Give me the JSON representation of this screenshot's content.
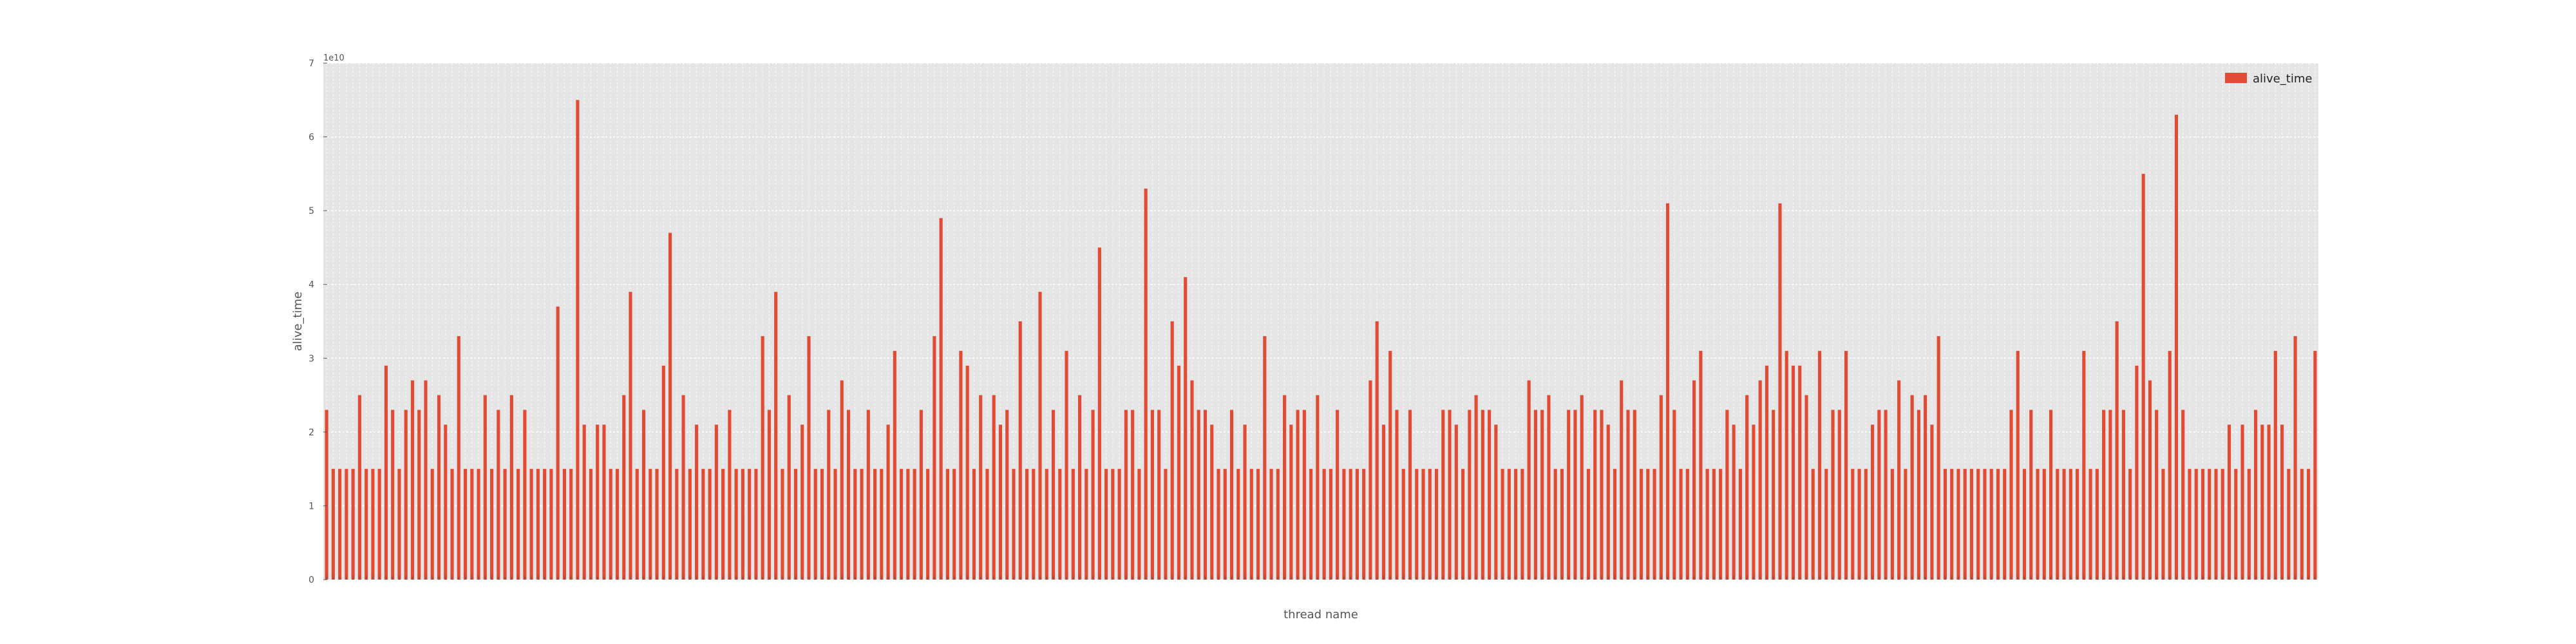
{
  "chart_data": {
    "type": "bar",
    "xlabel": "thread name",
    "ylabel": "alive_time",
    "y_offset_text": "1e10",
    "ylim": [
      0,
      7
    ],
    "yticks": [
      0,
      1,
      2,
      3,
      4,
      5,
      6,
      7
    ],
    "grid": true,
    "legend_position": "top-right",
    "series": [
      {
        "name": "alive_time",
        "color": "#E24A33",
        "values": [
          2.3,
          1.5,
          1.5,
          1.5,
          1.5,
          2.5,
          1.5,
          1.5,
          1.5,
          2.9,
          2.3,
          1.5,
          2.3,
          2.7,
          2.3,
          2.7,
          1.5,
          2.5,
          2.1,
          1.5,
          3.3,
          1.5,
          1.5,
          1.5,
          2.5,
          1.5,
          2.3,
          1.5,
          2.5,
          1.5,
          2.3,
          1.5,
          1.5,
          1.5,
          1.5,
          3.7,
          1.5,
          1.5,
          6.5,
          2.1,
          1.5,
          2.1,
          2.1,
          1.5,
          1.5,
          2.5,
          3.9,
          1.5,
          2.3,
          1.5,
          1.5,
          2.9,
          4.7,
          1.5,
          2.5,
          1.5,
          2.1,
          1.5,
          1.5,
          2.1,
          1.5,
          2.3,
          1.5,
          1.5,
          1.5,
          1.5,
          3.3,
          2.3,
          3.9,
          1.5,
          2.5,
          1.5,
          2.1,
          3.3,
          1.5,
          1.5,
          2.3,
          1.5,
          2.7,
          2.3,
          1.5,
          1.5,
          2.3,
          1.5,
          1.5,
          2.1,
          3.1,
          1.5,
          1.5,
          1.5,
          2.3,
          1.5,
          3.3,
          4.9,
          1.5,
          1.5,
          3.1,
          2.9,
          1.5,
          2.5,
          1.5,
          2.5,
          2.1,
          2.3,
          1.5,
          3.5,
          1.5,
          1.5,
          3.9,
          1.5,
          2.3,
          1.5,
          3.1,
          1.5,
          2.5,
          1.5,
          2.3,
          4.5,
          1.5,
          1.5,
          1.5,
          2.3,
          2.3,
          1.5,
          5.3,
          2.3,
          2.3,
          1.5,
          3.5,
          2.9,
          4.1,
          2.7,
          2.3,
          2.3,
          2.1,
          1.5,
          1.5,
          2.3,
          1.5,
          2.1,
          1.5,
          1.5,
          3.3,
          1.5,
          1.5,
          2.5,
          2.1,
          2.3,
          2.3,
          1.5,
          2.5,
          1.5,
          1.5,
          2.3,
          1.5,
          1.5,
          1.5,
          1.5,
          2.7,
          3.5,
          2.1,
          3.1,
          2.3,
          1.5,
          2.3,
          1.5,
          1.5,
          1.5,
          1.5,
          2.3,
          2.3,
          2.1,
          1.5,
          2.3,
          2.5,
          2.3,
          2.3,
          2.1,
          1.5,
          1.5,
          1.5,
          1.5,
          2.7,
          2.3,
          2.3,
          2.5,
          1.5,
          1.5,
          2.3,
          2.3,
          2.5,
          1.5,
          2.3,
          2.3,
          2.1,
          1.5,
          2.7,
          2.3,
          2.3,
          1.5,
          1.5,
          1.5,
          2.5,
          5.1,
          2.3,
          1.5,
          1.5,
          2.7,
          3.1,
          1.5,
          1.5,
          1.5,
          2.3,
          2.1,
          1.5,
          2.5,
          2.1,
          2.7,
          2.9,
          2.3,
          5.1,
          3.1,
          2.9,
          2.9,
          2.5,
          1.5,
          3.1,
          1.5,
          2.3,
          2.3,
          3.1,
          1.5,
          1.5,
          1.5,
          2.1,
          2.3,
          2.3,
          1.5,
          2.7,
          1.5,
          2.5,
          2.3,
          2.5,
          2.1,
          3.3,
          1.5,
          1.5,
          1.5,
          1.5,
          1.5,
          1.5,
          1.5,
          1.5,
          1.5,
          1.5,
          2.3,
          3.1,
          1.5,
          2.3,
          1.5,
          1.5,
          2.3,
          1.5,
          1.5,
          1.5,
          1.5,
          3.1,
          1.5,
          1.5,
          2.3,
          2.3,
          3.5,
          2.3,
          1.5,
          2.9,
          5.5,
          2.7,
          2.3,
          1.5,
          3.1,
          6.3,
          2.3,
          1.5,
          1.5,
          1.5,
          1.5,
          1.5,
          1.5,
          2.1,
          1.5,
          2.1,
          1.5,
          2.3,
          2.1,
          2.1,
          3.1,
          2.1,
          1.5,
          3.3,
          1.5,
          1.5,
          3.1
        ]
      }
    ]
  }
}
